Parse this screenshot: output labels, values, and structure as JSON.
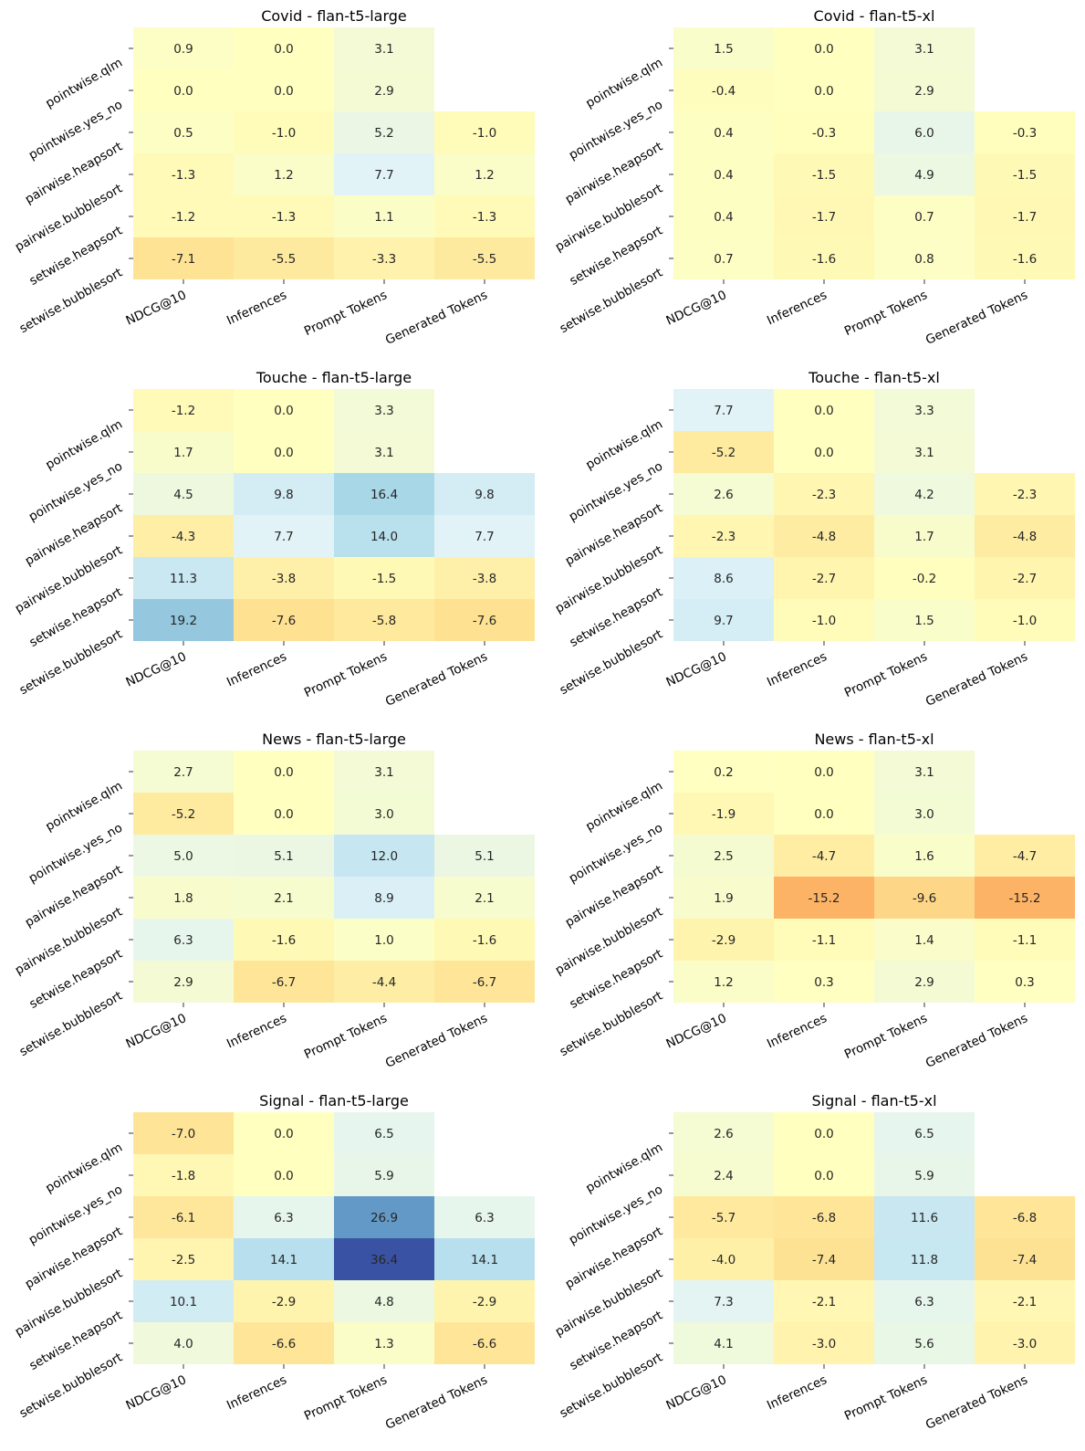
{
  "chart_data": [
    {
      "type": "heatmap",
      "title": "Covid - flan-t5-large",
      "rows": [
        "pointwise.qlm",
        "pointwise.yes_no",
        "pairwise.heapsort",
        "pairwise.bubblesort",
        "setwise.heapsort",
        "setwise.bubblesort"
      ],
      "columns": [
        "NDCG@10",
        "Inferences",
        "Prompt Tokens",
        "Generated Tokens"
      ],
      "values": [
        [
          0.9,
          0.0,
          3.1,
          null
        ],
        [
          0.0,
          0.0,
          2.9,
          null
        ],
        [
          0.5,
          -1.0,
          5.2,
          -1.0
        ],
        [
          -1.3,
          1.2,
          7.7,
          1.2
        ],
        [
          -1.2,
          -1.3,
          1.1,
          -1.3
        ],
        [
          -7.1,
          -5.5,
          -3.3,
          -5.5
        ]
      ]
    },
    {
      "type": "heatmap",
      "title": "Covid - flan-t5-xl",
      "rows": [
        "pointwise.qlm",
        "pointwise.yes_no",
        "pairwise.heapsort",
        "pairwise.bubblesort",
        "setwise.heapsort",
        "setwise.bubblesort"
      ],
      "columns": [
        "NDCG@10",
        "Inferences",
        "Prompt Tokens",
        "Generated Tokens"
      ],
      "values": [
        [
          1.5,
          0.0,
          3.1,
          null
        ],
        [
          -0.4,
          0.0,
          2.9,
          null
        ],
        [
          0.4,
          -0.3,
          6.0,
          -0.3
        ],
        [
          0.4,
          -1.5,
          4.9,
          -1.5
        ],
        [
          0.4,
          -1.7,
          0.7,
          -1.7
        ],
        [
          0.7,
          -1.6,
          0.8,
          -1.6
        ]
      ]
    },
    {
      "type": "heatmap",
      "title": "Touche - flan-t5-large",
      "rows": [
        "pointwise.qlm",
        "pointwise.yes_no",
        "pairwise.heapsort",
        "pairwise.bubblesort",
        "setwise.heapsort",
        "setwise.bubblesort"
      ],
      "columns": [
        "NDCG@10",
        "Inferences",
        "Prompt Tokens",
        "Generated Tokens"
      ],
      "values": [
        [
          -1.2,
          0.0,
          3.3,
          null
        ],
        [
          1.7,
          0.0,
          3.1,
          null
        ],
        [
          4.5,
          9.8,
          16.4,
          9.8
        ],
        [
          -4.3,
          7.7,
          14.0,
          7.7
        ],
        [
          11.3,
          -3.8,
          -1.5,
          -3.8
        ],
        [
          19.2,
          -7.6,
          -5.8,
          -7.6
        ]
      ]
    },
    {
      "type": "heatmap",
      "title": "Touche - flan-t5-xl",
      "rows": [
        "pointwise.qlm",
        "pointwise.yes_no",
        "pairwise.heapsort",
        "pairwise.bubblesort",
        "setwise.heapsort",
        "setwise.bubblesort"
      ],
      "columns": [
        "NDCG@10",
        "Inferences",
        "Prompt Tokens",
        "Generated Tokens"
      ],
      "values": [
        [
          7.7,
          0.0,
          3.3,
          null
        ],
        [
          -5.2,
          0.0,
          3.1,
          null
        ],
        [
          2.6,
          -2.3,
          4.2,
          -2.3
        ],
        [
          -2.3,
          -4.8,
          1.7,
          -4.8
        ],
        [
          8.6,
          -2.7,
          -0.2,
          -2.7
        ],
        [
          9.7,
          -1.0,
          1.5,
          -1.0
        ]
      ]
    },
    {
      "type": "heatmap",
      "title": "News - flan-t5-large",
      "rows": [
        "pointwise.qlm",
        "pointwise.yes_no",
        "pairwise.heapsort",
        "pairwise.bubblesort",
        "setwise.heapsort",
        "setwise.bubblesort"
      ],
      "columns": [
        "NDCG@10",
        "Inferences",
        "Prompt Tokens",
        "Generated Tokens"
      ],
      "values": [
        [
          2.7,
          0.0,
          3.1,
          null
        ],
        [
          -5.2,
          0.0,
          3.0,
          null
        ],
        [
          5.0,
          5.1,
          12.0,
          5.1
        ],
        [
          1.8,
          2.1,
          8.9,
          2.1
        ],
        [
          6.3,
          -1.6,
          1.0,
          -1.6
        ],
        [
          2.9,
          -6.7,
          -4.4,
          -6.7
        ]
      ]
    },
    {
      "type": "heatmap",
      "title": "News - flan-t5-xl",
      "rows": [
        "pointwise.qlm",
        "pointwise.yes_no",
        "pairwise.heapsort",
        "pairwise.bubblesort",
        "setwise.heapsort",
        "setwise.bubblesort"
      ],
      "columns": [
        "NDCG@10",
        "Inferences",
        "Prompt Tokens",
        "Generated Tokens"
      ],
      "values": [
        [
          0.2,
          0.0,
          3.1,
          null
        ],
        [
          -1.9,
          0.0,
          3.0,
          null
        ],
        [
          2.5,
          -4.7,
          1.6,
          -4.7
        ],
        [
          1.9,
          -15.2,
          -9.6,
          -15.2
        ],
        [
          -2.9,
          -1.1,
          1.4,
          -1.1
        ],
        [
          1.2,
          0.3,
          2.9,
          0.3
        ]
      ]
    },
    {
      "type": "heatmap",
      "title": "Signal - flan-t5-large",
      "rows": [
        "pointwise.qlm",
        "pointwise.yes_no",
        "pairwise.heapsort",
        "pairwise.bubblesort",
        "setwise.heapsort",
        "setwise.bubblesort"
      ],
      "columns": [
        "NDCG@10",
        "Inferences",
        "Prompt Tokens",
        "Generated Tokens"
      ],
      "values": [
        [
          -7.0,
          0.0,
          6.5,
          null
        ],
        [
          -1.8,
          0.0,
          5.9,
          null
        ],
        [
          -6.1,
          6.3,
          26.9,
          6.3
        ],
        [
          -2.5,
          14.1,
          36.4,
          14.1
        ],
        [
          10.1,
          -2.9,
          4.8,
          -2.9
        ],
        [
          4.0,
          -6.6,
          1.3,
          -6.6
        ]
      ]
    },
    {
      "type": "heatmap",
      "title": "Signal - flan-t5-xl",
      "rows": [
        "pointwise.qlm",
        "pointwise.yes_no",
        "pairwise.heapsort",
        "pairwise.bubblesort",
        "setwise.heapsort",
        "setwise.bubblesort"
      ],
      "columns": [
        "NDCG@10",
        "Inferences",
        "Prompt Tokens",
        "Generated Tokens"
      ],
      "values": [
        [
          2.6,
          0.0,
          6.5,
          null
        ],
        [
          2.4,
          0.0,
          5.9,
          null
        ],
        [
          -5.7,
          -6.8,
          11.6,
          -6.8
        ],
        [
          -4.0,
          -7.4,
          11.8,
          -7.4
        ],
        [
          7.3,
          -2.1,
          6.3,
          -2.1
        ],
        [
          4.1,
          -3.0,
          5.6,
          -3.0
        ]
      ]
    }
  ]
}
